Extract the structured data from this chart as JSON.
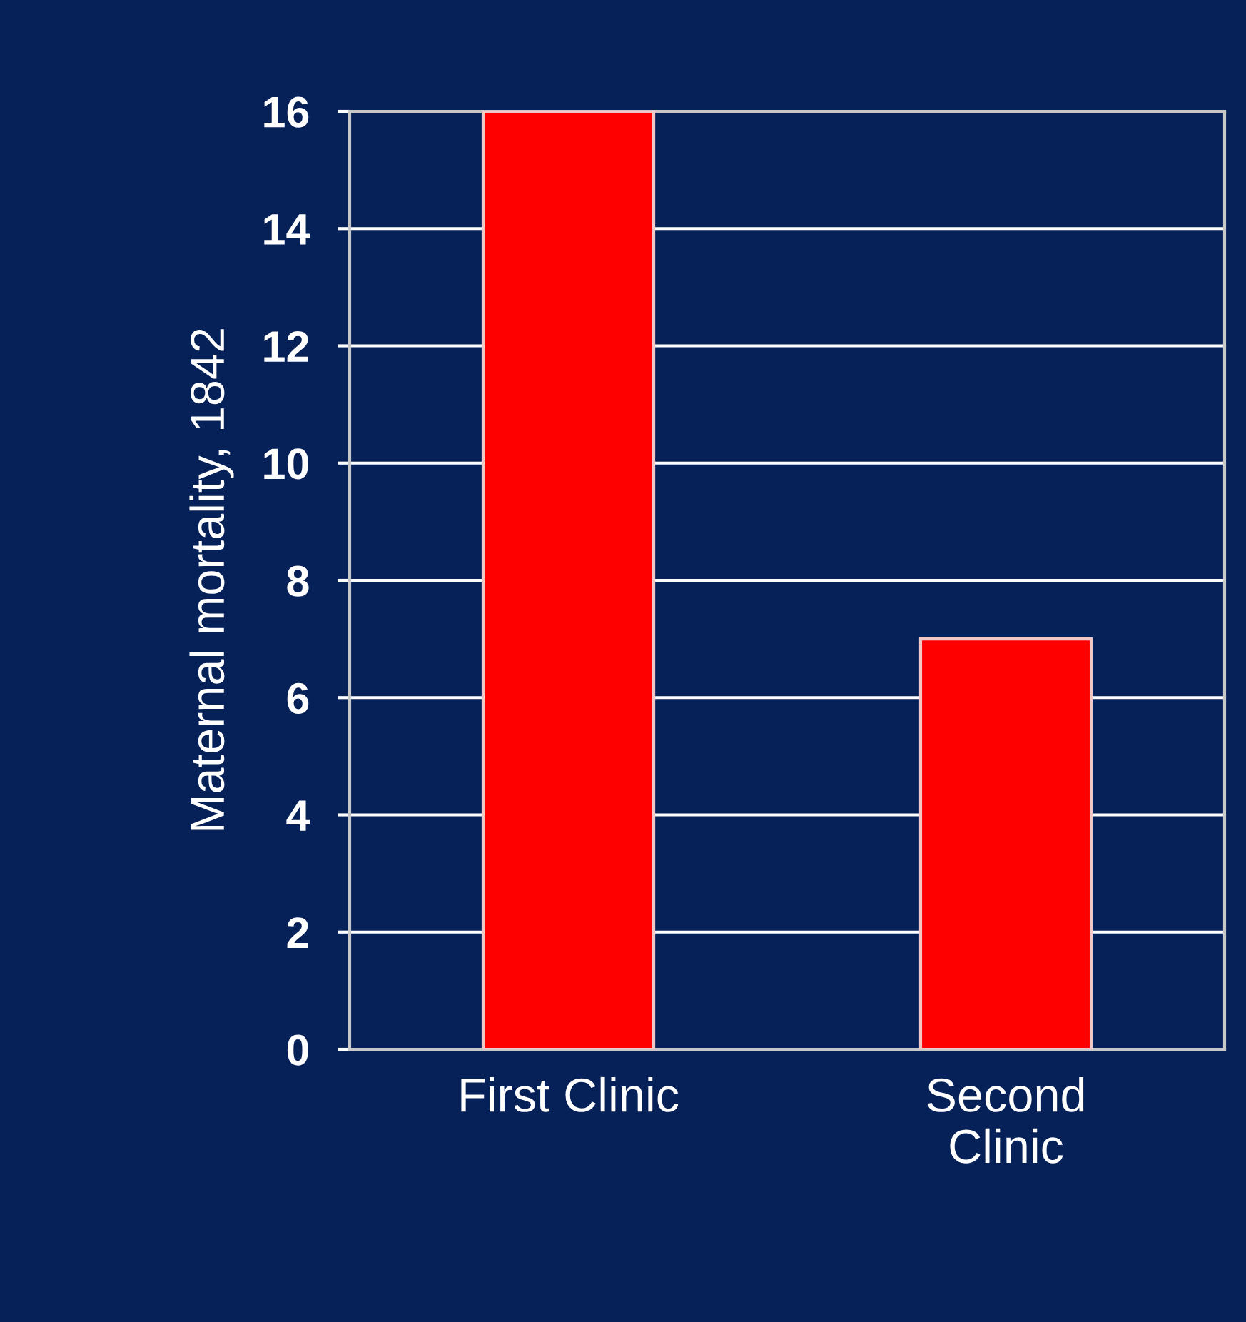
{
  "chart_data": {
    "type": "bar",
    "ylabel": "Maternal mortality, 1842",
    "categories": [
      "First Clinic",
      "Second\nClinic"
    ],
    "values": [
      16,
      7
    ],
    "color": "#ff0000",
    "ylim": [
      0,
      16
    ],
    "yticks": [
      0,
      2,
      4,
      6,
      8,
      10,
      12,
      14,
      16
    ],
    "grid": "y"
  }
}
